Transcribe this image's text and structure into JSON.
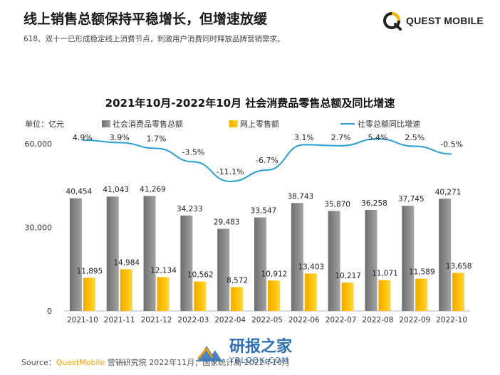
{
  "header": {
    "title": "线上销售总额保持平稳增长，但增速放缓",
    "subtitle": "618、双十一已形成稳定线上消费节点，刺激用户消费同时释放品牌营销需求。"
  },
  "logo": {
    "text": "QUEST MOBILE"
  },
  "footer": {
    "prefix": "Source：",
    "brand": "QuestMobile",
    "rest": " 营销研究院 2022年11月；国家统计局 2022年10月"
  },
  "watermark": {
    "title": "研报之家",
    "url": "YBLOOK.COM"
  },
  "colors": {
    "bar_total": "#888888",
    "bar_online": "#ffc000",
    "line": "#2a9fd6",
    "logo_accent": "#f5b800"
  },
  "chart_data": {
    "type": "bar",
    "title": "2021年10月-2022年10月 社会消费品零售总额及同比增速",
    "unit_label": "单位：亿元",
    "categories": [
      "2021-10",
      "2021-11",
      "2021-12",
      "2022-03",
      "2022-04",
      "2022-05",
      "2022-06",
      "2022-07",
      "2022-08",
      "2022-09",
      "2022-10"
    ],
    "series": [
      {
        "name": "社会消费品零售总额",
        "kind": "bar",
        "values": [
          40454,
          41043,
          41269,
          34233,
          29483,
          33547,
          38743,
          35870,
          36258,
          37745,
          40271
        ],
        "labels": [
          "40,454",
          "41,043",
          "41,269",
          "34,233",
          "29,483",
          "33,547",
          "38,743",
          "35,870",
          "36,258",
          "37,745",
          "40,271"
        ]
      },
      {
        "name": "网上零售额",
        "kind": "bar",
        "values": [
          11895,
          14984,
          12134,
          10562,
          8572,
          10912,
          13403,
          10217,
          11071,
          11589,
          13658
        ],
        "labels": [
          "11,895",
          "14,984",
          "12,134",
          "10,562",
          "8,572",
          "10,912",
          "13,403",
          "10,217",
          "11,071",
          "11,589",
          "13,658"
        ]
      },
      {
        "name": "社零总额同比增速",
        "kind": "line",
        "values": [
          4.9,
          3.9,
          1.7,
          -3.5,
          -11.1,
          -6.7,
          3.1,
          2.7,
          5.4,
          2.5,
          -0.5
        ],
        "labels": [
          "4.9%",
          "3.9%",
          "1.7%",
          "-3.5%",
          "-11.1%",
          "-6.7%",
          "3.1%",
          "2.7%",
          "5.4%",
          "2.5%",
          "-0.5%"
        ]
      }
    ],
    "y_ticks": [
      "0",
      "30,000",
      "60,000"
    ],
    "ylim": [
      0,
      60000
    ],
    "legend_position": "top",
    "grid": false
  }
}
